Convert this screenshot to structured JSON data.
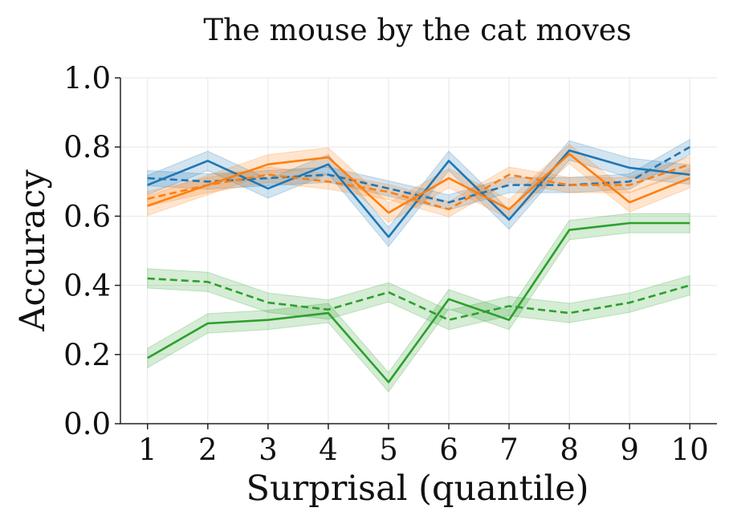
{
  "chart_data": {
    "type": "line",
    "title": "The mouse by the cat moves",
    "xlabel": "Surprisal (quantile)",
    "ylabel": "Accuracy",
    "x": [
      1,
      2,
      3,
      4,
      5,
      6,
      7,
      8,
      9,
      10
    ],
    "xlim": [
      0.55,
      10.45
    ],
    "ylim": [
      0.0,
      1.0
    ],
    "yticks": [
      0.0,
      0.2,
      0.4,
      0.6,
      0.8,
      1.0
    ],
    "ytick_labels": [
      "0.0",
      "0.2",
      "0.4",
      "0.6",
      "0.8",
      "1.0"
    ],
    "xtick_labels": [
      "1",
      "2",
      "3",
      "4",
      "5",
      "6",
      "7",
      "8",
      "9",
      "10"
    ],
    "grid": true,
    "legend": "none",
    "series": [
      {
        "name": "blue-solid",
        "color": "#1f77b4",
        "style": "solid",
        "values": [
          0.69,
          0.76,
          0.68,
          0.75,
          0.54,
          0.76,
          0.59,
          0.79,
          0.74,
          0.72
        ],
        "band": 0.028
      },
      {
        "name": "blue-dashed",
        "color": "#1f77b4",
        "style": "dashed",
        "values": [
          0.71,
          0.7,
          0.71,
          0.72,
          0.68,
          0.64,
          0.69,
          0.69,
          0.7,
          0.8
        ],
        "band": 0.022
      },
      {
        "name": "orange-solid",
        "color": "#ff7f0e",
        "style": "solid",
        "values": [
          0.63,
          0.69,
          0.75,
          0.77,
          0.61,
          0.71,
          0.62,
          0.78,
          0.64,
          0.71
        ],
        "band": 0.028
      },
      {
        "name": "orange-dashed",
        "color": "#ff7f0e",
        "style": "dashed",
        "values": [
          0.65,
          0.69,
          0.72,
          0.7,
          0.67,
          0.62,
          0.72,
          0.69,
          0.69,
          0.75
        ],
        "band": 0.022
      },
      {
        "name": "green-solid",
        "color": "#2ca02c",
        "style": "solid",
        "values": [
          0.19,
          0.29,
          0.3,
          0.32,
          0.12,
          0.36,
          0.3,
          0.56,
          0.58,
          0.58
        ],
        "band": 0.028
      },
      {
        "name": "green-dashed",
        "color": "#2ca02c",
        "style": "dashed",
        "values": [
          0.42,
          0.41,
          0.35,
          0.33,
          0.38,
          0.3,
          0.34,
          0.32,
          0.35,
          0.4
        ],
        "band": 0.028
      }
    ]
  }
}
